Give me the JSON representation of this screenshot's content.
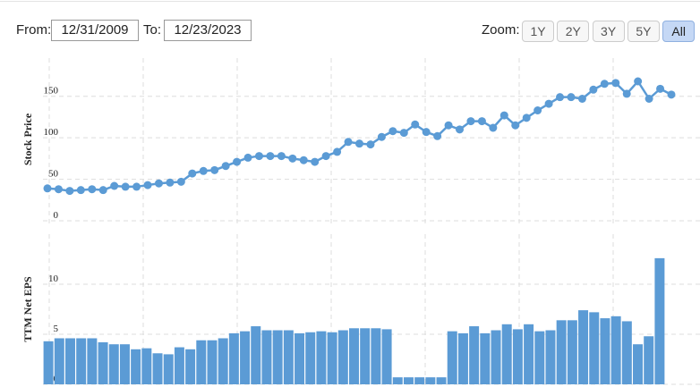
{
  "toolbar": {
    "from_label": "From:",
    "from_value": "12/31/2009",
    "to_label": "To:",
    "to_value": "12/23/2023",
    "zoom_label": "Zoom:",
    "zoom_buttons": [
      "1Y",
      "2Y",
      "3Y",
      "5Y",
      "All"
    ],
    "selected": 4
  },
  "chart_data": [
    {
      "type": "line",
      "y_label": "Stock Price",
      "color": "#5b9bd5",
      "ylim": [
        0,
        196
      ],
      "yticks": [
        0,
        50,
        100,
        150
      ],
      "grid": true,
      "values": [
        39,
        38,
        36,
        37,
        38,
        37,
        42,
        41,
        41,
        43,
        45,
        46,
        47,
        57,
        60,
        61,
        66,
        71,
        76,
        78,
        78,
        78,
        75,
        73,
        71,
        78,
        83,
        95,
        93,
        92,
        101,
        108,
        106,
        116,
        107,
        102,
        115,
        110,
        120,
        120,
        112,
        127,
        115,
        124,
        133,
        141,
        149,
        149,
        147,
        158,
        165,
        166,
        153,
        168,
        147,
        159,
        152
      ]
    },
    {
      "type": "bar",
      "y_label": "TTM Net EPS",
      "color": "#5b9bd5",
      "ylim": [
        0,
        15
      ],
      "yticks": [
        0,
        5,
        10
      ],
      "grid": true,
      "values": [
        4.3,
        4.6,
        4.6,
        4.6,
        4.6,
        4.2,
        4.0,
        4.0,
        3.5,
        3.6,
        3.1,
        3.0,
        3.7,
        3.5,
        4.4,
        4.4,
        4.6,
        5.1,
        5.3,
        5.8,
        5.4,
        5.4,
        5.4,
        5.1,
        5.2,
        5.3,
        5.2,
        5.4,
        5.6,
        5.6,
        5.6,
        5.5,
        0.7,
        0.7,
        0.7,
        0.7,
        0.7,
        5.3,
        5.1,
        5.8,
        5.1,
        5.4,
        6.0,
        5.5,
        6.0,
        5.3,
        5.4,
        6.4,
        6.4,
        7.4,
        7.2,
        6.6,
        6.8,
        6.3,
        4.0,
        4.8,
        12.6
      ]
    }
  ]
}
